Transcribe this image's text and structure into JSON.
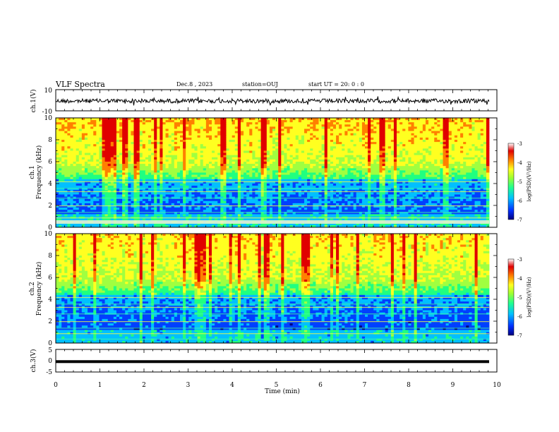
{
  "header": {
    "title": "VLF Spectra",
    "date": "Dec.8 , 2023",
    "station": "station=OUJ",
    "start": "start UT =  20: 0 : 0"
  },
  "colors": {
    "axis": "#000000",
    "trace": "#000000",
    "spectrogram_colormap": [
      "#000080",
      "#0040ff",
      "#00c0ff",
      "#20ff80",
      "#a0ff40",
      "#ffff20",
      "#ff8000",
      "#e00000",
      "#ffffff"
    ]
  },
  "chart_data": [
    {
      "type": "line",
      "panel": "ch1-waveform",
      "ylabel": "ch.1(V)",
      "ylim": [
        -10,
        10
      ],
      "yticks": [
        "10",
        "-10"
      ],
      "xlim": [
        0,
        10
      ],
      "series": [
        {
          "values_description_level": 0
        }
      ]
    },
    {
      "type": "heatmap",
      "panel": "ch1-spectrogram",
      "ylabel_channel": "ch.1",
      "ylabel": "Frequency (kHz)",
      "ylim": [
        0,
        10
      ],
      "yticks": [
        "0",
        "2",
        "4",
        "6",
        "8",
        "10"
      ],
      "xlim": [
        0,
        10
      ],
      "colorbar": {
        "label": "log(PSD)(V²/Hz)",
        "range": [
          -7,
          -3
        ],
        "ticks": [
          "-3",
          "-4",
          "-5",
          "-6",
          "-7"
        ]
      }
    },
    {
      "type": "heatmap",
      "panel": "ch2-spectrogram",
      "ylabel_channel": "ch.2",
      "ylabel": "Frequency (kHz)",
      "ylim": [
        0,
        10
      ],
      "yticks": [
        "0",
        "2",
        "4",
        "6",
        "8",
        "10"
      ],
      "xlim": [
        0,
        10
      ],
      "colorbar": {
        "label": "log(PSD)(V²/Hz)",
        "range": [
          -7,
          -3
        ],
        "ticks": [
          "-3",
          "-4",
          "-5",
          "-6",
          "-7"
        ]
      }
    },
    {
      "type": "line",
      "panel": "ch3-waveform",
      "ylabel": "ch.3(V)",
      "ylim": [
        -5,
        5
      ],
      "yticks": [
        "5",
        "0",
        "-5"
      ],
      "xlim": [
        0,
        10
      ],
      "series": [
        {
          "constant_value": -0.4
        }
      ]
    }
  ],
  "xaxis": {
    "label": "Time (min)",
    "ticks": [
      "0",
      "1",
      "2",
      "3",
      "4",
      "5",
      "6",
      "7",
      "8",
      "9",
      "10"
    ]
  }
}
